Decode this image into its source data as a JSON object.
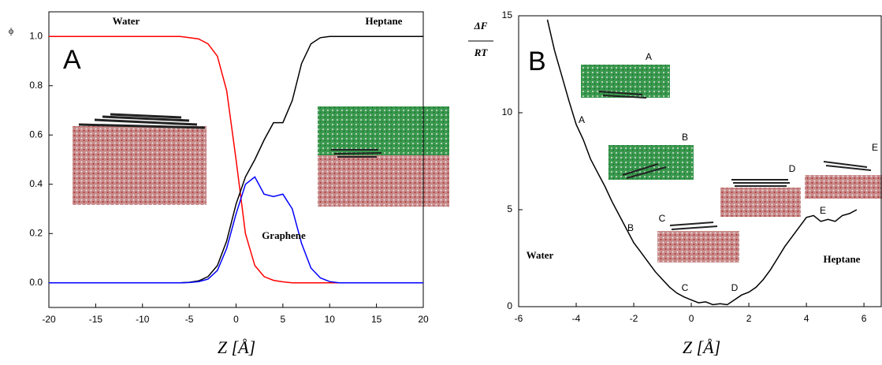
{
  "chart_data": [
    {
      "type": "line",
      "panel": "A",
      "ylabel": "ϕ",
      "xlabel": "Z [Å]",
      "x": [
        -20,
        -19,
        -18,
        -17,
        -16,
        -15,
        -14,
        -13,
        -12,
        -11,
        -10,
        -9,
        -8,
        -7,
        -6,
        -5,
        -4,
        -3,
        -2,
        -1,
        0,
        1,
        2,
        3,
        4,
        5,
        6,
        7,
        8,
        9,
        10,
        11,
        12,
        13,
        14,
        15,
        16,
        17,
        18,
        19,
        20
      ],
      "series": [
        {
          "name": "Water",
          "color": "#ff0000",
          "values": [
            1,
            1,
            1,
            1,
            1,
            1,
            1,
            1,
            1,
            1,
            1,
            1,
            1,
            1,
            1,
            0.995,
            0.99,
            0.97,
            0.92,
            0.78,
            0.5,
            0.2,
            0.07,
            0.025,
            0.01,
            0.004,
            0,
            0,
            0,
            0,
            0,
            0,
            0,
            0,
            0,
            0,
            0,
            0,
            0,
            0,
            0
          ]
        },
        {
          "name": "Heptane",
          "color": "#000000",
          "values": [
            0,
            0,
            0,
            0,
            0,
            0,
            0,
            0,
            0,
            0,
            0,
            0,
            0,
            0,
            0,
            0.002,
            0.008,
            0.025,
            0.07,
            0.17,
            0.32,
            0.43,
            0.5,
            0.58,
            0.65,
            0.65,
            0.74,
            0.89,
            0.97,
            0.995,
            1,
            1,
            1,
            1,
            1,
            1,
            1,
            1,
            1,
            1,
            1
          ]
        },
        {
          "name": "Graphene",
          "color": "#0000ff",
          "values": [
            0,
            0,
            0,
            0,
            0,
            0,
            0,
            0,
            0,
            0,
            0,
            0,
            0,
            0,
            0,
            0.001,
            0.005,
            0.015,
            0.05,
            0.14,
            0.28,
            0.4,
            0.43,
            0.36,
            0.35,
            0.36,
            0.3,
            0.16,
            0.06,
            0.02,
            0.005,
            0,
            0,
            0,
            0,
            0,
            0,
            0,
            0,
            0,
            0
          ]
        }
      ],
      "xlim": [
        -20,
        20
      ],
      "xticks": [
        -20,
        -15,
        -10,
        -5,
        0,
        5,
        10,
        15,
        20
      ],
      "ylim": [
        -0.1,
        1.1
      ],
      "yticks": [
        {
          "value": 0,
          "label": "0.0"
        },
        0.2,
        0.4,
        0.6,
        0.8,
        {
          "value": 1,
          "label": "1.0"
        }
      ]
    },
    {
      "type": "line",
      "panel": "B",
      "ylabel": [
        "ΔF",
        "RT"
      ],
      "xlabel": "Z [Å]",
      "x": [
        -5,
        -4.75,
        -4.5,
        -4.25,
        -4,
        -3.75,
        -3.5,
        -3.25,
        -3,
        -2.75,
        -2.5,
        -2.25,
        -2,
        -1.75,
        -1.5,
        -1.25,
        -1,
        -0.75,
        -0.5,
        -0.25,
        0,
        0.25,
        0.5,
        0.75,
        1,
        1.25,
        1.5,
        1.75,
        2,
        2.25,
        2.5,
        2.75,
        3,
        3.25,
        3.5,
        3.75,
        4,
        4.25,
        4.5,
        4.75,
        5,
        5.25,
        5.5,
        5.75
      ],
      "values": [
        14.8,
        13.2,
        11.9,
        10.6,
        9.4,
        8.6,
        7.6,
        6.9,
        6.2,
        5.4,
        4.7,
        4.0,
        3.3,
        2.8,
        2.3,
        1.8,
        1.4,
        1.0,
        0.7,
        0.5,
        0.35,
        0.2,
        0.25,
        0.1,
        0.15,
        0.1,
        0.35,
        0.6,
        0.75,
        1.0,
        1.4,
        1.9,
        2.5,
        3.1,
        3.6,
        4.1,
        4.6,
        4.7,
        4.4,
        4.5,
        4.4,
        4.7,
        4.8,
        5.0
      ],
      "color": "#000000",
      "annotations": [
        "A",
        "B",
        "C",
        "D",
        "E",
        "A",
        "B",
        "C",
        "D",
        "E",
        "Water",
        "Heptane"
      ],
      "xlim": [
        -6,
        6.6
      ],
      "xticks": [
        -6,
        -4,
        -2,
        0,
        2,
        4,
        6
      ],
      "ylim": [
        0,
        15
      ],
      "yticks": [
        0,
        5,
        10,
        15
      ]
    }
  ]
}
